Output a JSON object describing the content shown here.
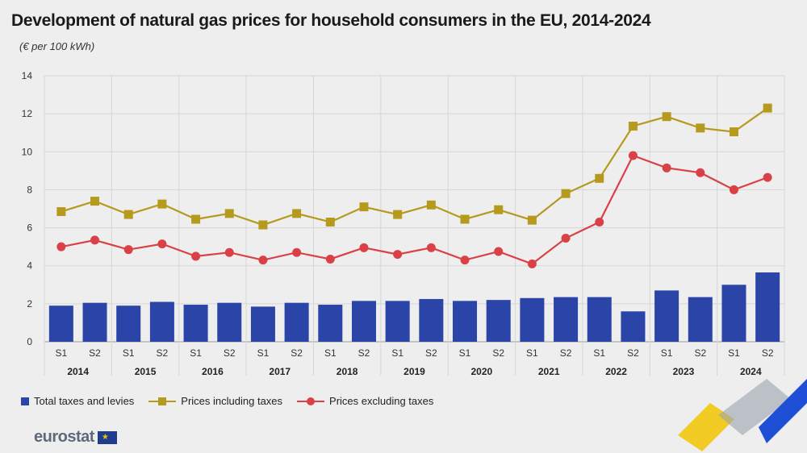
{
  "title": "Development of natural gas prices for household consumers in the EU, 2014-2024",
  "subtitle": "(€ per 100 kWh)",
  "legend": {
    "taxes": "Total taxes and levies",
    "incl": "Prices including taxes",
    "excl": "Prices excluding taxes"
  },
  "logo_text": "eurostat",
  "colors": {
    "bars": "#2a44a8",
    "incl": "#b59a1e",
    "excl": "#d94146",
    "grid": "#d6d6d6"
  },
  "chart_data": {
    "type": "bar",
    "title": "Development of natural gas prices for household consumers in the EU, 2014-2024",
    "ylabel": "€ per 100 kWh",
    "ylim": [
      0,
      14
    ],
    "yticks": [
      0,
      2,
      4,
      6,
      8,
      10,
      12,
      14
    ],
    "years": [
      "2014",
      "2015",
      "2016",
      "2017",
      "2018",
      "2019",
      "2020",
      "2021",
      "2022",
      "2023",
      "2024"
    ],
    "semesters": [
      "S1",
      "S2"
    ],
    "series": [
      {
        "name": "Total taxes and levies",
        "kind": "bar",
        "values": [
          1.9,
          2.05,
          1.9,
          2.1,
          1.95,
          2.05,
          1.85,
          2.05,
          1.95,
          2.15,
          2.15,
          2.25,
          2.15,
          2.2,
          2.3,
          2.35,
          2.35,
          1.6,
          2.7,
          2.35,
          3.0,
          3.65
        ]
      },
      {
        "name": "Prices including taxes",
        "kind": "line-square",
        "values": [
          6.85,
          7.4,
          6.7,
          7.25,
          6.45,
          6.75,
          6.15,
          6.75,
          6.3,
          7.1,
          6.7,
          7.2,
          6.45,
          6.95,
          6.4,
          7.8,
          8.6,
          11.35,
          11.85,
          11.25,
          11.05,
          12.3
        ]
      },
      {
        "name": "Prices excluding taxes",
        "kind": "line-circle",
        "values": [
          5.0,
          5.35,
          4.85,
          5.15,
          4.5,
          4.7,
          4.3,
          4.7,
          4.35,
          4.95,
          4.6,
          4.95,
          4.3,
          4.75,
          4.1,
          5.45,
          6.3,
          9.8,
          9.15,
          8.9,
          8.0,
          8.65
        ]
      }
    ]
  }
}
